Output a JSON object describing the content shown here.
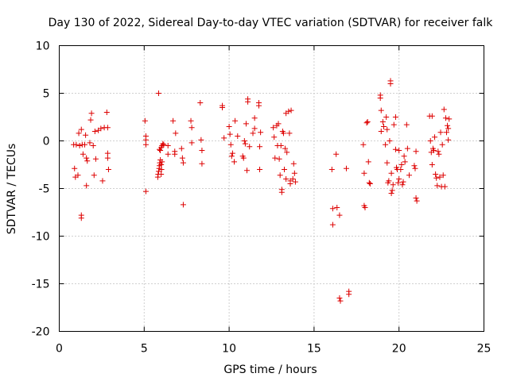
{
  "chart_data": {
    "type": "scatter",
    "title": "Day 130 of 2022, Sidereal Day-to-day VTEC variation (SDTVAR) for receiver falk",
    "xlabel": "GPS time / hours",
    "ylabel": "SDTVAR / TECUs",
    "xlim": [
      0,
      25
    ],
    "ylim": [
      -20,
      10
    ],
    "xticks": [
      0,
      5,
      10,
      15,
      20,
      25
    ],
    "yticks": [
      -20,
      -15,
      -10,
      -5,
      0,
      5,
      10
    ],
    "xtick_labels": [
      "0",
      "5",
      "10",
      "15",
      "20",
      "25"
    ],
    "ytick_labels": [
      "-20",
      "-15",
      "-10",
      "-5",
      "0",
      "5",
      "10"
    ],
    "grid": true,
    "marker": "plus",
    "color": "#dd0000",
    "series": [
      {
        "name": "SDTVAR",
        "points": [
          [
            0.85,
            -0.4
          ],
          [
            0.9,
            -2.9
          ],
          [
            0.95,
            -3.8
          ],
          [
            1.0,
            -0.4
          ],
          [
            1.1,
            -3.6
          ],
          [
            1.15,
            0.8
          ],
          [
            1.2,
            -0.5
          ],
          [
            1.3,
            1.2
          ],
          [
            1.3,
            -7.8
          ],
          [
            1.3,
            -8.1
          ],
          [
            1.35,
            -0.4
          ],
          [
            1.4,
            -1.4
          ],
          [
            1.5,
            -0.4
          ],
          [
            1.55,
            0.6
          ],
          [
            1.6,
            -1.8
          ],
          [
            1.6,
            -4.7
          ],
          [
            1.65,
            -2.1
          ],
          [
            1.8,
            -0.2
          ],
          [
            1.85,
            2.2
          ],
          [
            1.9,
            2.9
          ],
          [
            2.0,
            -0.5
          ],
          [
            2.05,
            -3.6
          ],
          [
            2.1,
            1.0
          ],
          [
            2.15,
            -1.9
          ],
          [
            2.3,
            1.1
          ],
          [
            2.45,
            1.3
          ],
          [
            2.55,
            -4.2
          ],
          [
            2.65,
            1.4
          ],
          [
            2.8,
            3.0
          ],
          [
            2.85,
            -1.3
          ],
          [
            2.85,
            -1.8
          ],
          [
            2.9,
            -3.0
          ],
          [
            2.85,
            1.4
          ],
          [
            5.05,
            2.1
          ],
          [
            5.1,
            0.5
          ],
          [
            5.1,
            0.1
          ],
          [
            5.1,
            -0.4
          ],
          [
            5.1,
            -5.3
          ],
          [
            5.85,
            5.0
          ],
          [
            5.8,
            -3.8
          ],
          [
            5.82,
            -3.5
          ],
          [
            5.85,
            -3.2
          ],
          [
            5.88,
            -2.9
          ],
          [
            5.9,
            -2.6
          ],
          [
            5.92,
            -2.3
          ],
          [
            5.95,
            -2.0
          ],
          [
            6.0,
            -2.5
          ],
          [
            6.02,
            -3.0
          ],
          [
            5.95,
            -1.0
          ],
          [
            6.0,
            -0.7
          ],
          [
            6.05,
            -0.5
          ],
          [
            6.1,
            -0.3
          ],
          [
            5.9,
            -0.9
          ],
          [
            6.15,
            -0.4
          ],
          [
            6.0,
            -3.5
          ],
          [
            6.05,
            -2.2
          ],
          [
            6.4,
            -0.5
          ],
          [
            6.4,
            -1.4
          ],
          [
            6.7,
            2.1
          ],
          [
            6.8,
            -1.4
          ],
          [
            6.8,
            -1.1
          ],
          [
            6.85,
            0.8
          ],
          [
            7.2,
            -0.8
          ],
          [
            7.25,
            -1.8
          ],
          [
            7.3,
            -2.3
          ],
          [
            7.3,
            -6.7
          ],
          [
            7.75,
            2.1
          ],
          [
            7.8,
            1.4
          ],
          [
            7.8,
            -0.2
          ],
          [
            8.3,
            4.0
          ],
          [
            8.35,
            0.1
          ],
          [
            8.4,
            -1.0
          ],
          [
            8.4,
            -2.4
          ],
          [
            9.6,
            3.7
          ],
          [
            9.6,
            3.5
          ],
          [
            9.7,
            0.3
          ],
          [
            10.0,
            1.5
          ],
          [
            10.05,
            0.7
          ],
          [
            10.1,
            -0.4
          ],
          [
            10.15,
            -1.6
          ],
          [
            10.2,
            -1.3
          ],
          [
            10.3,
            -2.2
          ],
          [
            10.35,
            2.1
          ],
          [
            10.5,
            0.5
          ],
          [
            10.8,
            -1.6
          ],
          [
            10.85,
            -1.8
          ],
          [
            10.9,
            0.0
          ],
          [
            10.95,
            -0.3
          ],
          [
            11.0,
            1.8
          ],
          [
            11.05,
            -3.1
          ],
          [
            11.1,
            4.4
          ],
          [
            11.1,
            4.1
          ],
          [
            11.2,
            -0.6
          ],
          [
            11.4,
            0.8
          ],
          [
            11.5,
            2.4
          ],
          [
            11.5,
            1.3
          ],
          [
            11.75,
            4.0
          ],
          [
            11.75,
            3.7
          ],
          [
            11.8,
            -0.6
          ],
          [
            11.8,
            -3.0
          ],
          [
            11.85,
            0.9
          ],
          [
            12.6,
            1.4
          ],
          [
            12.65,
            0.4
          ],
          [
            12.7,
            -1.8
          ],
          [
            12.8,
            1.6
          ],
          [
            12.85,
            -0.5
          ],
          [
            12.9,
            1.8
          ],
          [
            12.95,
            -1.9
          ],
          [
            13.0,
            -3.6
          ],
          [
            13.05,
            -0.5
          ],
          [
            13.1,
            -5.4
          ],
          [
            13.1,
            -5.1
          ],
          [
            13.15,
            1.0
          ],
          [
            13.2,
            0.8
          ],
          [
            13.25,
            -3.0
          ],
          [
            13.3,
            -0.8
          ],
          [
            13.35,
            2.9
          ],
          [
            13.4,
            -1.2
          ],
          [
            13.5,
            3.1
          ],
          [
            13.55,
            0.8
          ],
          [
            13.6,
            -4.2
          ],
          [
            13.6,
            -4.5
          ],
          [
            13.65,
            3.2
          ],
          [
            13.75,
            -4.0
          ],
          [
            13.8,
            -2.4
          ],
          [
            13.85,
            -3.4
          ],
          [
            13.9,
            -4.3
          ],
          [
            13.35,
            -4.0
          ],
          [
            16.05,
            -3.0
          ],
          [
            16.1,
            -7.1
          ],
          [
            16.1,
            -8.8
          ],
          [
            16.3,
            -1.4
          ],
          [
            16.35,
            -7.0
          ],
          [
            16.5,
            -7.8
          ],
          [
            16.5,
            -16.5
          ],
          [
            16.55,
            -16.8
          ],
          [
            16.9,
            -2.9
          ],
          [
            17.05,
            -15.8
          ],
          [
            17.05,
            -16.1
          ],
          [
            17.9,
            -0.4
          ],
          [
            17.95,
            -3.4
          ],
          [
            17.95,
            -6.8
          ],
          [
            18.0,
            -7.0
          ],
          [
            18.1,
            1.9
          ],
          [
            18.15,
            2.0
          ],
          [
            18.2,
            -2.2
          ],
          [
            18.25,
            -4.4
          ],
          [
            18.3,
            -4.5
          ],
          [
            18.9,
            4.8
          ],
          [
            18.9,
            4.5
          ],
          [
            18.95,
            3.2
          ],
          [
            18.95,
            1.0
          ],
          [
            19.05,
            2.0
          ],
          [
            19.1,
            1.5
          ],
          [
            19.2,
            -0.4
          ],
          [
            19.25,
            2.5
          ],
          [
            19.3,
            1.2
          ],
          [
            19.3,
            -2.3
          ],
          [
            19.35,
            -4.4
          ],
          [
            19.4,
            -4.2
          ],
          [
            19.45,
            0.0
          ],
          [
            19.5,
            6.3
          ],
          [
            19.5,
            6.0
          ],
          [
            19.55,
            -3.4
          ],
          [
            19.55,
            -5.5
          ],
          [
            19.6,
            -5.2
          ],
          [
            19.65,
            -4.6
          ],
          [
            19.7,
            1.7
          ],
          [
            19.8,
            2.5
          ],
          [
            19.8,
            -0.9
          ],
          [
            19.85,
            -2.8
          ],
          [
            19.9,
            -3.0
          ],
          [
            19.95,
            -4.4
          ],
          [
            20.0,
            -4.0
          ],
          [
            20.0,
            -1.0
          ],
          [
            20.1,
            -3.0
          ],
          [
            20.15,
            -2.5
          ],
          [
            20.2,
            -4.6
          ],
          [
            20.25,
            -4.3
          ],
          [
            20.3,
            -1.6
          ],
          [
            20.35,
            -2.2
          ],
          [
            20.45,
            1.7
          ],
          [
            20.5,
            -0.8
          ],
          [
            20.6,
            -3.6
          ],
          [
            20.9,
            -2.6
          ],
          [
            20.95,
            -2.9
          ],
          [
            21.0,
            -6.0
          ],
          [
            21.05,
            -6.3
          ],
          [
            21.0,
            -1.1
          ],
          [
            21.8,
            2.6
          ],
          [
            21.85,
            0.0
          ],
          [
            21.9,
            -1.2
          ],
          [
            21.95,
            -2.5
          ],
          [
            22.0,
            -0.8
          ],
          [
            22.05,
            -1.0
          ],
          [
            22.1,
            0.4
          ],
          [
            22.15,
            -3.5
          ],
          [
            22.2,
            -3.9
          ],
          [
            22.25,
            -4.7
          ],
          [
            22.3,
            -1.1
          ],
          [
            22.35,
            -1.4
          ],
          [
            22.4,
            -3.8
          ],
          [
            22.45,
            0.9
          ],
          [
            22.5,
            -4.8
          ],
          [
            22.55,
            -0.4
          ],
          [
            22.6,
            -3.6
          ],
          [
            22.65,
            3.3
          ],
          [
            22.7,
            -4.8
          ],
          [
            22.75,
            2.4
          ],
          [
            22.8,
            0.9
          ],
          [
            22.85,
            1.6
          ],
          [
            22.9,
            0.1
          ],
          [
            22.9,
            1.3
          ],
          [
            22.95,
            2.3
          ],
          [
            21.95,
            2.6
          ]
        ]
      }
    ]
  }
}
